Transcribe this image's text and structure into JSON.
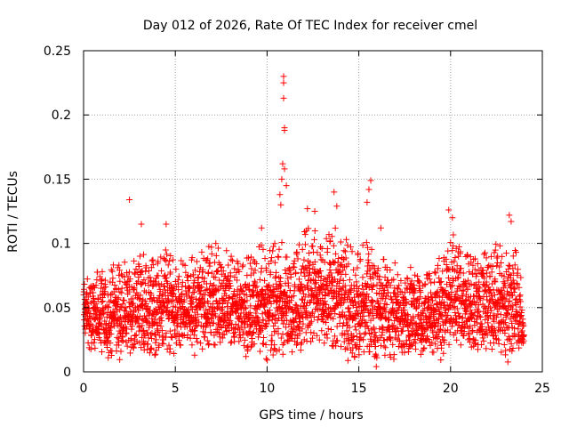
{
  "chart_data": {
    "type": "scatter",
    "title": "Day 012 of 2026, Rate Of TEC Index for receiver cmel",
    "xlabel": "GPS time / hours",
    "ylabel": "ROTI / TECUs",
    "xlim": [
      0,
      25
    ],
    "ylim": [
      0,
      0.25
    ],
    "xticks": [
      "0",
      "5",
      "10",
      "15",
      "20",
      "25"
    ],
    "yticks": [
      "0",
      "0.05",
      "0.1",
      "0.15",
      "0.2",
      "0.25"
    ],
    "grid": true,
    "legend": "none",
    "marker": "+",
    "color": "#ff0000",
    "density_profile": {
      "x": [
        0,
        0.5,
        1,
        1.5,
        2,
        2.5,
        3,
        3.5,
        4,
        4.5,
        5,
        5.5,
        6,
        6.5,
        7,
        7.5,
        8,
        8.5,
        9,
        9.5,
        10,
        10.5,
        11,
        11.5,
        12,
        12.5,
        13,
        13.5,
        14,
        14.5,
        15,
        15.5,
        16,
        16.5,
        17,
        17.5,
        18,
        18.5,
        19,
        19.5,
        20,
        20.5,
        21,
        21.5,
        22,
        22.5,
        23,
        23.5,
        24
      ],
      "low": [
        0.02,
        0.015,
        0.015,
        0.015,
        0.015,
        0.02,
        0.015,
        0.015,
        0.01,
        0.015,
        0.015,
        0.02,
        0.015,
        0.02,
        0.02,
        0.02,
        0.02,
        0.02,
        0.015,
        0.02,
        0.01,
        0.015,
        0.015,
        0.02,
        0.02,
        0.025,
        0.02,
        0.02,
        0.02,
        0.01,
        0.01,
        0.015,
        0.01,
        0.01,
        0.01,
        0.015,
        0.015,
        0.015,
        0.015,
        0.015,
        0.015,
        0.015,
        0.015,
        0.015,
        0.02,
        0.015,
        0.015,
        0.015,
        0.02
      ],
      "high": [
        0.075,
        0.08,
        0.08,
        0.085,
        0.09,
        0.085,
        0.095,
        0.09,
        0.085,
        0.1,
        0.09,
        0.085,
        0.09,
        0.105,
        0.1,
        0.1,
        0.095,
        0.09,
        0.095,
        0.1,
        0.1,
        0.105,
        0.1,
        0.105,
        0.11,
        0.115,
        0.1,
        0.11,
        0.115,
        0.1,
        0.095,
        0.105,
        0.1,
        0.09,
        0.085,
        0.09,
        0.085,
        0.08,
        0.09,
        0.095,
        0.11,
        0.1,
        0.09,
        0.095,
        0.1,
        0.1,
        0.095,
        0.1,
        0.06
      ]
    },
    "notable_points": [
      {
        "x": 2.5,
        "y": 0.134
      },
      {
        "x": 3.15,
        "y": 0.115
      },
      {
        "x": 4.5,
        "y": 0.115
      },
      {
        "x": 9.7,
        "y": 0.112
      },
      {
        "x": 10.9,
        "y": 0.23
      },
      {
        "x": 10.9,
        "y": 0.225
      },
      {
        "x": 10.9,
        "y": 0.213
      },
      {
        "x": 10.95,
        "y": 0.19
      },
      {
        "x": 10.95,
        "y": 0.188
      },
      {
        "x": 10.85,
        "y": 0.162
      },
      {
        "x": 10.95,
        "y": 0.158
      },
      {
        "x": 10.8,
        "y": 0.15
      },
      {
        "x": 10.7,
        "y": 0.138
      },
      {
        "x": 10.75,
        "y": 0.13
      },
      {
        "x": 11.05,
        "y": 0.145
      },
      {
        "x": 12.2,
        "y": 0.127
      },
      {
        "x": 12.6,
        "y": 0.125
      },
      {
        "x": 13.65,
        "y": 0.14
      },
      {
        "x": 13.8,
        "y": 0.129
      },
      {
        "x": 15.65,
        "y": 0.149
      },
      {
        "x": 15.55,
        "y": 0.142
      },
      {
        "x": 15.45,
        "y": 0.132
      },
      {
        "x": 16.2,
        "y": 0.112
      },
      {
        "x": 19.9,
        "y": 0.126
      },
      {
        "x": 20.1,
        "y": 0.12
      },
      {
        "x": 23.2,
        "y": 0.122
      },
      {
        "x": 23.3,
        "y": 0.117
      }
    ]
  }
}
